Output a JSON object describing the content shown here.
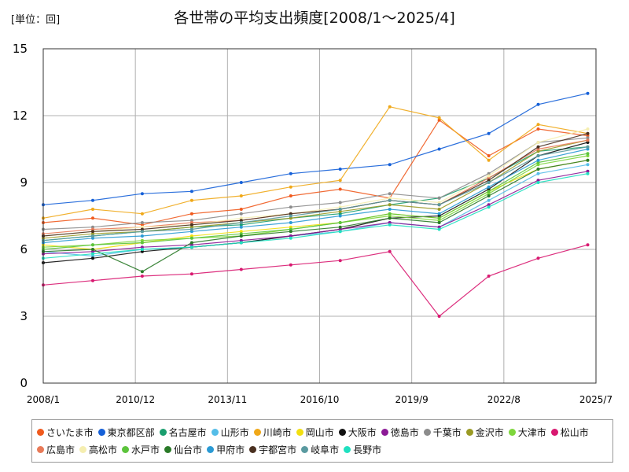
{
  "unit_label": "[単位：回]",
  "title": "各世帯の平均支出頻度[2008/1～2025/4]",
  "chart_data": {
    "type": "line",
    "title": "各世帯の平均支出頻度[2008/1～2025/4]",
    "ylabel": "[単位：回]",
    "xlabel": "",
    "x_start": "2008/1",
    "x_end": "2025/7",
    "ylim": [
      0,
      15
    ],
    "yticks": [
      0,
      3,
      6,
      9,
      12,
      15
    ],
    "xticks": [
      "2008/1",
      "2010/12",
      "2013/11",
      "2016/10",
      "2019/9",
      "2022/8",
      "2025/7"
    ],
    "grid": true,
    "legend_position": "bottom",
    "series": [
      {
        "name": "さいたま市",
        "color": "#f05a1e",
        "values": [
          7.2,
          7.4,
          7.1,
          7.6,
          7.8,
          8.4,
          8.7,
          8.3,
          11.8,
          10.2,
          11.4,
          11.1
        ]
      },
      {
        "name": "東京都区部",
        "color": "#1560d8",
        "values": [
          8.0,
          8.2,
          8.5,
          8.6,
          9.0,
          9.4,
          9.6,
          9.8,
          10.5,
          11.2,
          12.5,
          13.0
        ]
      },
      {
        "name": "名古屋市",
        "color": "#1a9e6e",
        "values": [
          6.4,
          6.6,
          6.8,
          7.0,
          7.1,
          7.4,
          7.6,
          8.0,
          8.3,
          9.2,
          10.4,
          10.6
        ]
      },
      {
        "name": "山形市",
        "color": "#55bde8",
        "values": [
          5.9,
          5.7,
          6.0,
          6.1,
          6.3,
          6.6,
          6.8,
          7.2,
          7.0,
          8.2,
          9.4,
          9.8
        ]
      },
      {
        "name": "川崎市",
        "color": "#f0a818",
        "values": [
          7.4,
          7.8,
          7.6,
          8.2,
          8.4,
          8.8,
          9.1,
          12.4,
          11.9,
          10.0,
          11.6,
          11.2
        ]
      },
      {
        "name": "岡山市",
        "color": "#f2df10",
        "values": [
          6.2,
          6.0,
          6.3,
          6.6,
          6.8,
          7.0,
          7.2,
          7.6,
          7.4,
          8.6,
          9.6,
          10.0
        ]
      },
      {
        "name": "大阪市",
        "color": "#111111",
        "values": [
          5.4,
          5.6,
          5.9,
          6.1,
          6.3,
          6.6,
          6.9,
          7.4,
          7.5,
          8.7,
          10.2,
          10.8
        ]
      },
      {
        "name": "徳島市",
        "color": "#8c1a96",
        "values": [
          5.8,
          5.9,
          6.1,
          6.2,
          6.4,
          6.6,
          6.9,
          7.2,
          7.0,
          8.0,
          9.1,
          9.5
        ]
      },
      {
        "name": "千葉市",
        "color": "#8c8c8c",
        "values": [
          6.9,
          7.0,
          7.2,
          7.3,
          7.6,
          7.9,
          8.1,
          8.5,
          8.3,
          9.4,
          10.8,
          11.0
        ]
      },
      {
        "name": "金沢市",
        "color": "#9a9a24",
        "values": [
          6.5,
          6.7,
          6.8,
          7.0,
          7.2,
          7.4,
          7.7,
          8.0,
          7.8,
          9.0,
          10.4,
          10.9
        ]
      },
      {
        "name": "大津市",
        "color": "#7ed63c",
        "values": [
          6.1,
          6.2,
          6.4,
          6.5,
          6.6,
          6.9,
          7.2,
          7.5,
          7.3,
          8.5,
          9.8,
          10.2
        ]
      },
      {
        "name": "松山市",
        "color": "#d81870",
        "values": [
          4.4,
          4.6,
          4.8,
          4.9,
          5.1,
          5.3,
          5.5,
          5.9,
          3.0,
          4.8,
          5.6,
          6.2
        ]
      },
      {
        "name": "広島市",
        "color": "#e87a58",
        "values": [
          6.7,
          6.9,
          7.0,
          7.2,
          7.3,
          7.6,
          7.8,
          8.2,
          8.0,
          9.2,
          10.5,
          10.9
        ]
      },
      {
        "name": "高松市",
        "color": "#f5eeb0",
        "values": [
          6.6,
          6.8,
          7.0,
          7.1,
          7.4,
          7.6,
          7.9,
          8.3,
          8.1,
          9.3,
          10.8,
          11.4
        ]
      },
      {
        "name": "水戸市",
        "color": "#5cc43c",
        "values": [
          6.0,
          6.2,
          6.3,
          6.5,
          6.7,
          6.9,
          7.2,
          7.6,
          7.4,
          8.6,
          9.9,
          10.3
        ]
      },
      {
        "name": "仙台市",
        "color": "#2a7a28",
        "values": [
          5.9,
          6.0,
          5.0,
          6.3,
          6.6,
          6.8,
          7.0,
          7.4,
          7.2,
          8.4,
          9.6,
          10.0
        ]
      },
      {
        "name": "甲府市",
        "color": "#2a9ad4",
        "values": [
          6.3,
          6.5,
          6.6,
          6.8,
          7.0,
          7.2,
          7.5,
          7.8,
          7.6,
          8.8,
          10.0,
          10.5
        ]
      },
      {
        "name": "宇都宮市",
        "color": "#4a3020",
        "values": [
          6.6,
          6.8,
          6.9,
          7.1,
          7.3,
          7.6,
          7.8,
          8.2,
          8.0,
          9.1,
          10.6,
          11.2
        ]
      },
      {
        "name": "岐阜市",
        "color": "#5a9aa0",
        "values": [
          6.4,
          6.6,
          6.8,
          6.9,
          7.2,
          7.5,
          7.8,
          8.2,
          8.0,
          9.0,
          10.2,
          10.6
        ]
      },
      {
        "name": "長野市",
        "color": "#20e0c0",
        "values": [
          5.6,
          5.8,
          6.0,
          6.1,
          6.3,
          6.5,
          6.8,
          7.1,
          6.9,
          7.9,
          9.0,
          9.4
        ]
      }
    ]
  }
}
